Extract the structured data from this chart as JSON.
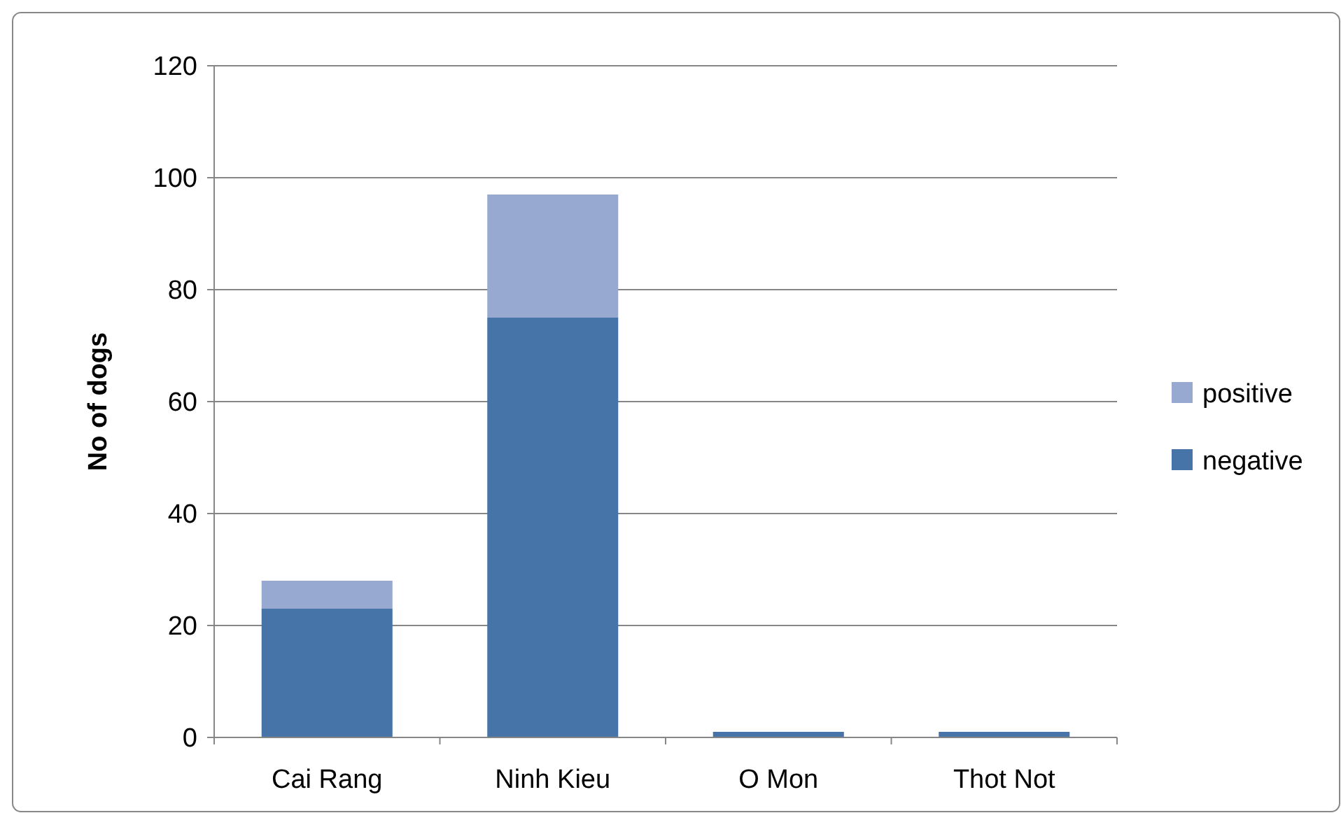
{
  "chart_data": {
    "type": "bar",
    "ylabel": "No of dogs",
    "categories": [
      "Cai Rang",
      "Ninh Kieu",
      "O Mon",
      "Thot Not"
    ],
    "series": [
      {
        "name": "negative",
        "color": "#4673a8",
        "values": [
          23,
          75,
          1,
          1
        ]
      },
      {
        "name": "positive",
        "color": "#98a9d1",
        "values": [
          5,
          22,
          0,
          0
        ]
      }
    ],
    "stacked": true,
    "ylim": [
      0,
      120
    ],
    "yticks": [
      0,
      20,
      40,
      60,
      80,
      100,
      120
    ],
    "grid": "y",
    "legend": "right"
  }
}
